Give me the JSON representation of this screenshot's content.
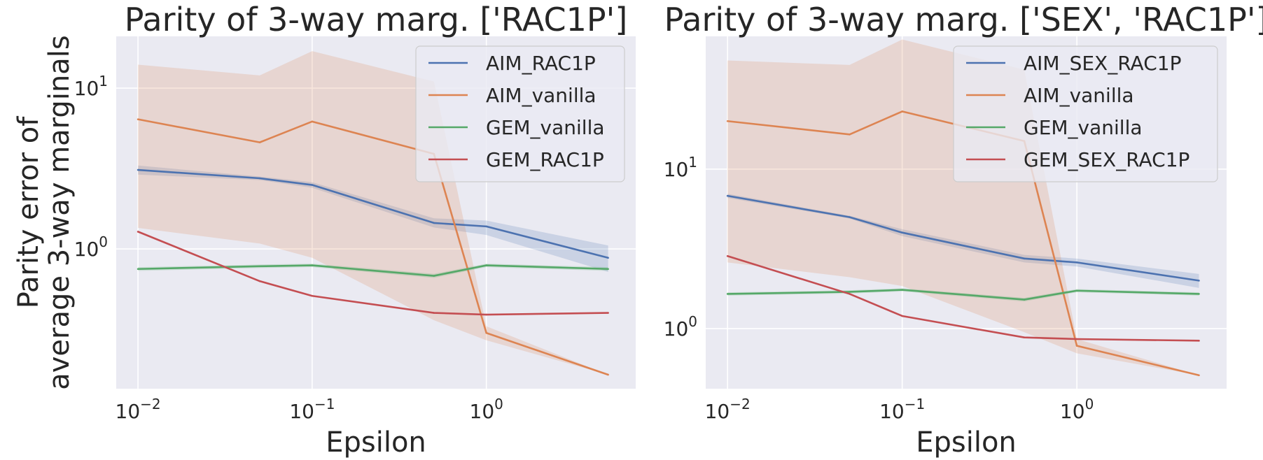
{
  "chart_data": [
    {
      "type": "line",
      "title": "Parity of 3-way marg. ['RAC1P']",
      "xlabel": "Epsilon",
      "ylabel": [
        "Parity error of",
        "average 3-way marginals"
      ],
      "xscale": "log",
      "yscale": "log",
      "xlim": [
        0.0075,
        7.2
      ],
      "ylim": [
        0.135,
        21
      ],
      "xticks": [
        {
          "value": 0.01,
          "base": "10",
          "exp": "−2"
        },
        {
          "value": 0.1,
          "base": "10",
          "exp": "−1"
        },
        {
          "value": 1,
          "base": "10",
          "exp": "0"
        }
      ],
      "yticks": [
        {
          "value": 1,
          "base": "10",
          "exp": "0"
        },
        {
          "value": 10,
          "base": "10",
          "exp": "1"
        }
      ],
      "grid": true,
      "legend_position": "top-right",
      "x": [
        0.01,
        0.05,
        0.1,
        0.5,
        1,
        5
      ],
      "series": [
        {
          "name": "AIM_RAC1P",
          "color": "#4c72b0",
          "values": [
            3.1,
            2.75,
            2.5,
            1.45,
            1.38,
            0.88
          ],
          "lower": [
            2.9,
            2.68,
            2.4,
            1.36,
            1.22,
            0.72
          ],
          "upper": [
            3.3,
            2.82,
            2.6,
            1.55,
            1.5,
            1.05
          ]
        },
        {
          "name": "AIM_vanilla",
          "color": "#dd8452",
          "values": [
            6.4,
            4.6,
            6.2,
            3.9,
            0.3,
            0.165
          ],
          "lower": [
            1.35,
            1.08,
            0.88,
            0.36,
            0.27,
            0.165
          ],
          "upper": [
            14,
            12,
            17,
            11,
            0.33,
            0.165
          ]
        },
        {
          "name": "GEM_vanilla",
          "color": "#55a868",
          "values": [
            0.75,
            0.78,
            0.79,
            0.68,
            0.79,
            0.75
          ],
          "lower": [
            0.73,
            0.76,
            0.77,
            0.66,
            0.77,
            0.73
          ],
          "upper": [
            0.77,
            0.8,
            0.81,
            0.7,
            0.81,
            0.77
          ]
        },
        {
          "name": "GEM_RAC1P",
          "color": "#c44e52",
          "values": [
            1.28,
            0.63,
            0.51,
            0.4,
            0.39,
            0.4
          ],
          "lower": [
            1.28,
            0.63,
            0.51,
            0.4,
            0.39,
            0.4
          ],
          "upper": [
            1.28,
            0.63,
            0.51,
            0.4,
            0.39,
            0.4
          ]
        }
      ]
    },
    {
      "type": "line",
      "title": "Parity of 3-way marg. ['SEX', 'RAC1P']",
      "xlabel": "Epsilon",
      "ylabel": [],
      "xscale": "log",
      "yscale": "log",
      "xlim": [
        0.0075,
        7.2
      ],
      "ylim": [
        0.42,
        68
      ],
      "xticks": [
        {
          "value": 0.01,
          "base": "10",
          "exp": "−2"
        },
        {
          "value": 0.1,
          "base": "10",
          "exp": "−1"
        },
        {
          "value": 1,
          "base": "10",
          "exp": "0"
        }
      ],
      "yticks": [
        {
          "value": 1,
          "base": "10",
          "exp": "0"
        },
        {
          "value": 10,
          "base": "10",
          "exp": "1"
        }
      ],
      "grid": true,
      "legend_position": "top-right",
      "x": [
        0.01,
        0.05,
        0.1,
        0.5,
        1,
        5
      ],
      "series": [
        {
          "name": "AIM_SEX_RAC1P",
          "color": "#4c72b0",
          "values": [
            6.8,
            5.0,
            4.0,
            2.75,
            2.6,
            2.0
          ],
          "lower": [
            6.6,
            4.9,
            3.8,
            2.6,
            2.45,
            1.8
          ],
          "upper": [
            7.0,
            5.1,
            4.2,
            2.9,
            2.75,
            2.2
          ]
        },
        {
          "name": "AIM_vanilla",
          "color": "#dd8452",
          "values": [
            20,
            16.5,
            23,
            15,
            0.78,
            0.51
          ],
          "lower": [
            2.6,
            2.1,
            1.85,
            0.95,
            0.7,
            0.51
          ],
          "upper": [
            48,
            45,
            65,
            42,
            0.86,
            0.51
          ]
        },
        {
          "name": "GEM_vanilla",
          "color": "#55a868",
          "values": [
            1.65,
            1.7,
            1.75,
            1.52,
            1.73,
            1.65
          ],
          "lower": [
            1.61,
            1.66,
            1.71,
            1.48,
            1.69,
            1.61
          ],
          "upper": [
            1.69,
            1.74,
            1.79,
            1.56,
            1.77,
            1.69
          ]
        },
        {
          "name": "GEM_SEX_RAC1P",
          "color": "#c44e52",
          "values": [
            2.85,
            1.65,
            1.2,
            0.88,
            0.86,
            0.84
          ],
          "lower": [
            2.85,
            1.65,
            1.2,
            0.88,
            0.86,
            0.84
          ],
          "upper": [
            2.85,
            1.65,
            1.2,
            0.88,
            0.86,
            0.84
          ]
        }
      ]
    }
  ],
  "style": {
    "axes_bg": "#eaeaf2",
    "grid_color": "#ffffff",
    "text_color": "#262626",
    "legend_bg": "#eaeaf2",
    "legend_border": "#cccccc"
  }
}
